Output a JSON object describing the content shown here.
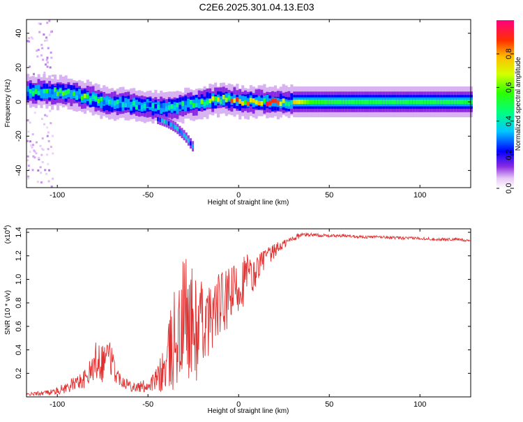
{
  "page_title": "C2E6.2025.301.04.13.E03",
  "chart_data": [
    {
      "type": "heatmap",
      "xlabel": "Height of straight line (km)",
      "ylabel": "Frequency (Hz)",
      "xlim": [
        -117,
        128
      ],
      "ylim": [
        -50,
        48
      ],
      "xticks": [
        -100,
        -50,
        0,
        50,
        100
      ],
      "yticks": [
        -40,
        -20,
        0,
        20,
        40
      ],
      "colorbar": {
        "label": "Normalized spectral amplitude",
        "range": [
          0,
          1
        ],
        "ticks": [
          "0.0",
          "0.2",
          "0.4",
          "0.6",
          "0.8"
        ],
        "tick_values": [
          0,
          0.2,
          0.4,
          0.6,
          0.8
        ]
      },
      "ridge": {
        "height_km": [
          -117,
          -105,
          -95,
          -85,
          -75,
          -65,
          -55,
          -45,
          -35,
          -25,
          -15,
          -5,
          0,
          10,
          20,
          30,
          40,
          60,
          80,
          100,
          128
        ],
        "frequency_hz": [
          6,
          6,
          5,
          3,
          0,
          -1,
          -2,
          -3,
          -3,
          -1,
          1,
          2,
          0,
          0,
          0,
          0,
          0,
          0,
          0,
          0,
          0
        ],
        "amplitude": [
          0.5,
          0.55,
          0.55,
          0.6,
          0.5,
          0.45,
          0.45,
          0.4,
          0.45,
          0.55,
          0.7,
          0.9,
          0.85,
          0.9,
          0.85,
          0.75,
          0.55,
          0.5,
          0.5,
          0.5,
          0.5
        ]
      },
      "tail": {
        "height_km": [
          -45,
          -40,
          -35,
          -30,
          -25
        ],
        "frequency_hz": [
          -10,
          -12,
          -15,
          -20,
          -27
        ]
      }
    },
    {
      "type": "line",
      "xlabel": "Height of straight line (km)",
      "ylabel": "SNR (10 * v/v)",
      "y_scale_label": "(x10",
      "y_scale_exp": "4",
      "y_scale_close": ")",
      "xlim": [
        -117,
        128
      ],
      "ylim": [
        0,
        1.43
      ],
      "xticks": [
        -100,
        -50,
        0,
        50,
        100
      ],
      "yticks": [
        0.2,
        0.4,
        0.6,
        0.8,
        1.0,
        1.2,
        1.4
      ],
      "ytick_labels": [
        "0.2",
        "0.4",
        "0.6",
        "0.8",
        "1.0",
        "1.2",
        "1.4"
      ],
      "series": [
        {
          "name": "SNR",
          "color": "#e03131",
          "x": [
            -117,
            -110,
            -105,
            -100,
            -95,
            -90,
            -85,
            -80,
            -78,
            -75,
            -72,
            -70,
            -68,
            -65,
            -60,
            -55,
            -50,
            -45,
            -40,
            -37,
            -35,
            -32,
            -30,
            -28,
            -25,
            -22,
            -20,
            -18,
            -15,
            -12,
            -10,
            -8,
            -5,
            -2,
            0,
            3,
            5,
            8,
            10,
            13,
            15,
            18,
            20,
            25,
            30,
            35,
            40,
            50,
            60,
            70,
            80,
            90,
            100,
            110,
            120,
            128
          ],
          "y": [
            0.02,
            0.03,
            0.04,
            0.05,
            0.08,
            0.12,
            0.15,
            0.25,
            0.35,
            0.3,
            0.4,
            0.3,
            0.2,
            0.15,
            0.1,
            0.08,
            0.1,
            0.15,
            0.25,
            0.4,
            0.55,
            0.5,
            0.7,
            0.65,
            0.6,
            0.55,
            0.65,
            0.6,
            0.7,
            0.75,
            0.8,
            0.78,
            0.85,
            0.9,
            0.95,
            1.0,
            1.05,
            1.0,
            1.1,
            1.15,
            1.2,
            1.2,
            1.25,
            1.3,
            1.35,
            1.38,
            1.38,
            1.37,
            1.37,
            1.36,
            1.36,
            1.35,
            1.35,
            1.34,
            1.34,
            1.33
          ],
          "jitter": [
            0.01,
            0.02,
            0.02,
            0.03,
            0.05,
            0.06,
            0.08,
            0.12,
            0.2,
            0.18,
            0.12,
            0.15,
            0.08,
            0.06,
            0.05,
            0.05,
            0.06,
            0.1,
            0.25,
            0.4,
            0.45,
            0.5,
            0.6,
            0.5,
            0.5,
            0.45,
            0.35,
            0.3,
            0.3,
            0.28,
            0.3,
            0.28,
            0.25,
            0.25,
            0.25,
            0.22,
            0.2,
            0.15,
            0.12,
            0.1,
            0.08,
            0.08,
            0.06,
            0.04,
            0.03,
            0.02,
            0.015,
            0.012,
            0.012,
            0.012,
            0.012,
            0.012,
            0.012,
            0.012,
            0.012,
            0.012
          ]
        }
      ]
    }
  ]
}
